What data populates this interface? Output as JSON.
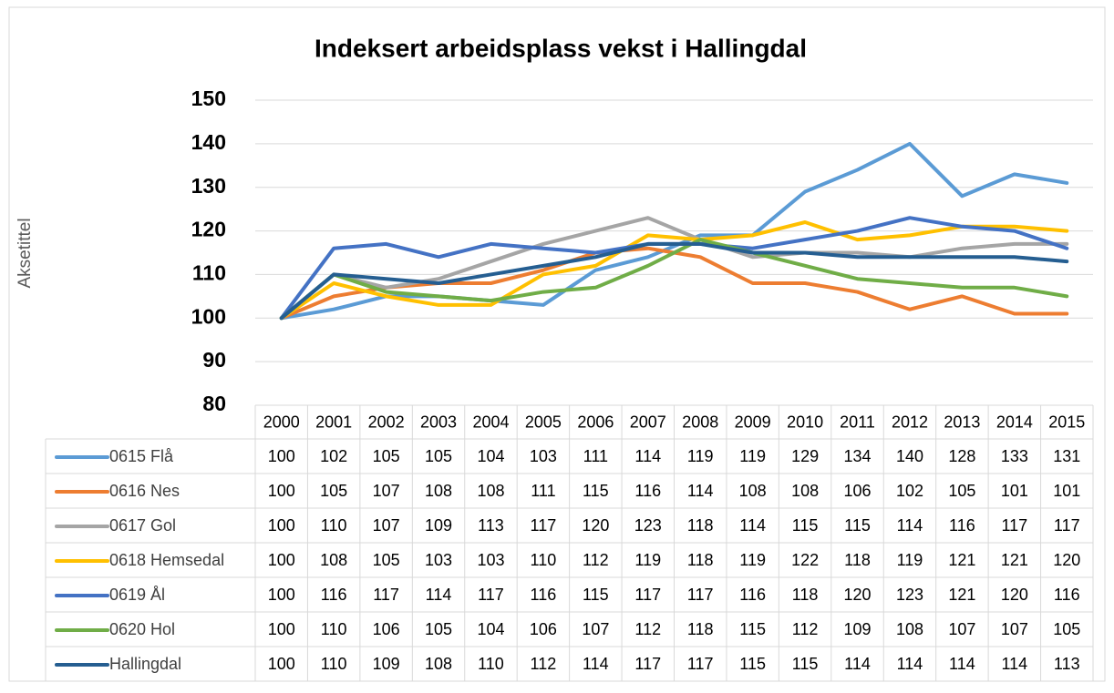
{
  "chart_data": {
    "type": "line",
    "title": "Indeksert arbeidsplass vekst i Hallingdal",
    "y_label": "Aksetittel",
    "categories": [
      "2000",
      "2001",
      "2002",
      "2003",
      "2004",
      "2005",
      "2006",
      "2007",
      "2008",
      "2009",
      "2010",
      "2011",
      "2012",
      "2013",
      "2014",
      "2015"
    ],
    "series": [
      {
        "name": "0615 Flå",
        "color": "#5b9bd5",
        "values": [
          100,
          102,
          105,
          105,
          104,
          103,
          111,
          114,
          119,
          119,
          129,
          134,
          140,
          128,
          133,
          131
        ]
      },
      {
        "name": "0616 Nes",
        "color": "#ed7d31",
        "values": [
          100,
          105,
          107,
          108,
          108,
          111,
          115,
          116,
          114,
          108,
          108,
          106,
          102,
          105,
          101,
          101
        ]
      },
      {
        "name": "0617 Gol",
        "color": "#a5a5a5",
        "values": [
          100,
          110,
          107,
          109,
          113,
          117,
          120,
          123,
          118,
          114,
          115,
          115,
          114,
          116,
          117,
          117
        ]
      },
      {
        "name": "0618 Hemsedal",
        "color": "#ffc000",
        "values": [
          100,
          108,
          105,
          103,
          103,
          110,
          112,
          119,
          118,
          119,
          122,
          118,
          119,
          121,
          121,
          120
        ]
      },
      {
        "name": "0619 Ål",
        "color": "#4472c4",
        "values": [
          100,
          116,
          117,
          114,
          117,
          116,
          115,
          117,
          117,
          116,
          118,
          120,
          123,
          121,
          120,
          116
        ]
      },
      {
        "name": "0620 Hol",
        "color": "#70ad47",
        "values": [
          100,
          110,
          106,
          105,
          104,
          106,
          107,
          112,
          118,
          115,
          112,
          109,
          108,
          107,
          107,
          105
        ]
      },
      {
        "name": "Hallingdal",
        "color": "#255e91",
        "values": [
          100,
          110,
          109,
          108,
          110,
          112,
          114,
          117,
          117,
          115,
          115,
          114,
          114,
          114,
          114,
          113
        ]
      }
    ],
    "ylim": [
      80,
      150
    ],
    "yticks": [
      80,
      90,
      100,
      110,
      120,
      130,
      140,
      150
    ],
    "grid": true,
    "data_table": true
  }
}
